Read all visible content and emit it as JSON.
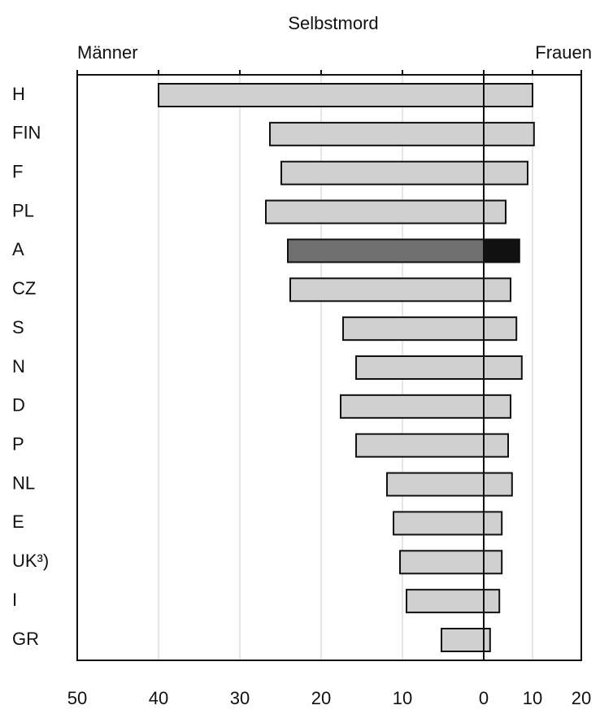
{
  "chart_data": {
    "type": "butterfly",
    "title": "Selbstmord",
    "categories": [
      "H",
      "FIN",
      "F",
      "PL",
      "A",
      "CZ",
      "S",
      "N",
      "D",
      "P",
      "NL",
      "E",
      "UK³)",
      "I",
      "GR"
    ],
    "highlight": "A",
    "series": [
      {
        "name": "Männer",
        "color": "#d0d0d0",
        "highlight_color": "#707070",
        "values": [
          40,
          26.3,
          24.9,
          26.8,
          24.1,
          23.8,
          17.3,
          15.7,
          17.6,
          15.7,
          11.9,
          11.1,
          10.3,
          9.5,
          5.2
        ],
        "xlim": [
          50,
          0
        ],
        "xticks": [
          50,
          40,
          30,
          20,
          10,
          0
        ]
      },
      {
        "name": "Frauen",
        "color": "#d0d0d0",
        "highlight_color": "#111111",
        "values": [
          10,
          10.3,
          9,
          4.5,
          7.3,
          5.5,
          6.7,
          7.8,
          5.5,
          5,
          5.8,
          3.7,
          3.7,
          3.2,
          1.3
        ],
        "xlim": [
          0,
          20
        ],
        "xticks": [
          10,
          20
        ]
      }
    ],
    "grid": true
  }
}
